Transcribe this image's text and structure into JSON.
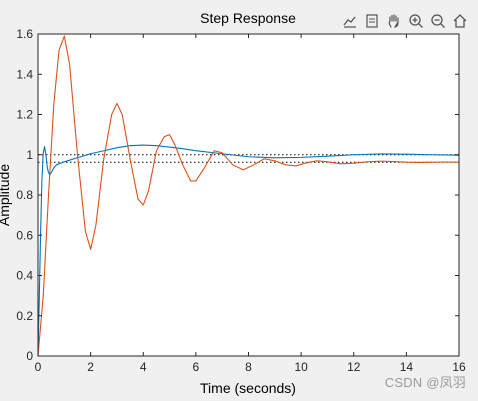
{
  "toolbar": {
    "icons": [
      "export-icon",
      "data-tips-icon",
      "pan-hand-icon",
      "zoom-in-icon",
      "zoom-out-icon",
      "home-icon"
    ]
  },
  "watermark": "CSDN @凤羽",
  "chart_data": {
    "type": "line",
    "title": "Step Response",
    "xlabel": "Time (seconds)",
    "ylabel": "Amplitude",
    "xlim": [
      0,
      16
    ],
    "ylim": [
      0,
      1.6
    ],
    "xticks": [
      0,
      2,
      4,
      6,
      8,
      10,
      12,
      14,
      16
    ],
    "yticks": [
      0,
      0.2,
      0.4,
      0.6,
      0.8,
      1,
      1.2,
      1.4,
      1.6
    ],
    "grid": false,
    "colors": {
      "series1": "#0072bd",
      "series2": "#d95319",
      "axes_bg": "#ffffff",
      "figure_bg": "#f0f0f0"
    },
    "series": [
      {
        "x": [
          0,
          0.05,
          0.1,
          0.15,
          0.2,
          0.25,
          0.3,
          0.35,
          0.4,
          0.45,
          0.5,
          0.6,
          0.7,
          0.8,
          1.0,
          1.5,
          2.0,
          2.5,
          3.0,
          3.5,
          4.0,
          4.5,
          5.0,
          5.5,
          6.0,
          7.0,
          8.0,
          9.0,
          10.0,
          11.0,
          12.0,
          13.0,
          14.0,
          15.0,
          16.0
        ],
        "y": [
          0,
          0.3,
          0.62,
          0.88,
          1.01,
          1.04,
          1.0,
          0.94,
          0.91,
          0.9,
          0.91,
          0.935,
          0.95,
          0.955,
          0.965,
          0.985,
          1.005,
          1.02,
          1.035,
          1.045,
          1.048,
          1.045,
          1.038,
          1.03,
          1.02,
          1.005,
          0.99,
          0.985,
          0.987,
          0.993,
          1.0,
          1.004,
          1.003,
          1.0,
          0.998
        ]
      },
      {
        "x": [
          0,
          0.2,
          0.4,
          0.6,
          0.8,
          1.0,
          1.2,
          1.5,
          1.8,
          2.0,
          2.2,
          2.5,
          2.8,
          3.0,
          3.2,
          3.5,
          3.8,
          4.0,
          4.2,
          4.5,
          4.8,
          5.0,
          5.2,
          5.5,
          5.8,
          6.0,
          6.3,
          6.7,
          7.0,
          7.4,
          7.8,
          8.2,
          8.6,
          9.0,
          9.4,
          9.8,
          10.2,
          10.6,
          11.0,
          11.5,
          12.0,
          12.5,
          13.0,
          13.5,
          14.0,
          14.5,
          15.0,
          15.5,
          16.0
        ],
        "y": [
          0,
          0.3,
          0.8,
          1.25,
          1.52,
          1.59,
          1.45,
          1.0,
          0.62,
          0.53,
          0.65,
          0.98,
          1.2,
          1.255,
          1.2,
          0.98,
          0.78,
          0.75,
          0.82,
          1.02,
          1.09,
          1.1,
          1.05,
          0.95,
          0.87,
          0.87,
          0.93,
          1.02,
          1.01,
          0.95,
          0.925,
          0.95,
          0.98,
          0.97,
          0.95,
          0.945,
          0.96,
          0.97,
          0.965,
          0.955,
          0.958,
          0.965,
          0.968,
          0.966,
          0.963,
          0.962,
          0.963,
          0.964,
          0.963
        ]
      }
    ],
    "reference_lines": [
      1.0,
      0.963
    ]
  }
}
